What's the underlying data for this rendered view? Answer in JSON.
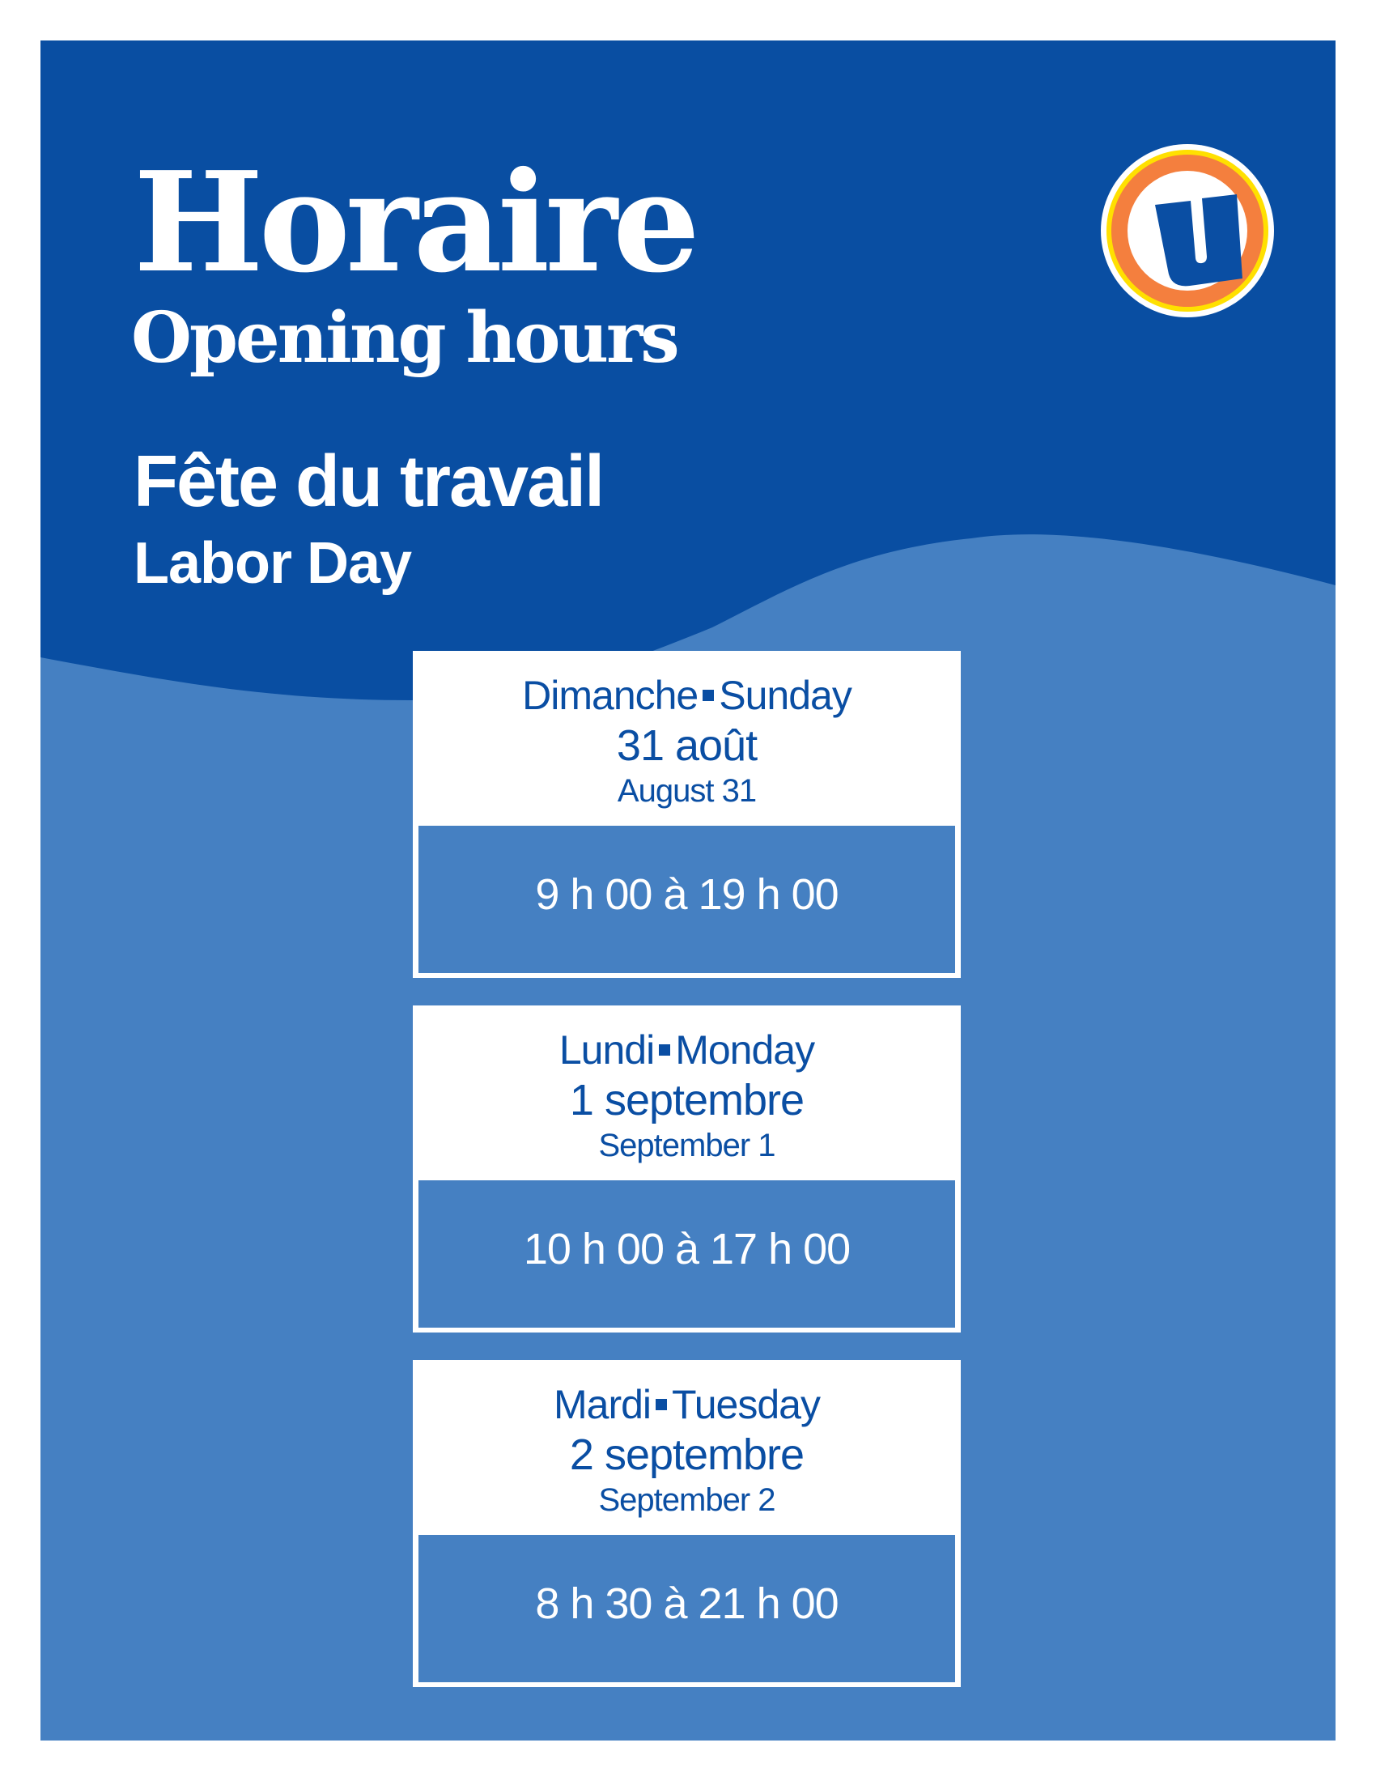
{
  "header": {
    "title_fr": "Horaire",
    "title_en": "Opening hours",
    "holiday_fr": "Fête du travail",
    "holiday_en": "Labor Day"
  },
  "logo": {
    "letter": "U",
    "colors": {
      "ring_outer": "#ffe000",
      "ring": "#f47f3e",
      "letter": "#0a4ea3"
    }
  },
  "colors": {
    "dark_blue": "#094ea2",
    "light_blue": "#4580c2",
    "white": "#ffffff"
  },
  "schedule": [
    {
      "day_fr": "Dimanche",
      "day_en": "Sunday",
      "date_fr": "31 août",
      "date_en": "August 31",
      "hours": "9 h 00 à 19 h 00"
    },
    {
      "day_fr": "Lundi",
      "day_en": "Monday",
      "date_fr": "1 septembre",
      "date_en": "September 1",
      "hours": "10 h 00 à 17 h 00"
    },
    {
      "day_fr": "Mardi",
      "day_en": "Tuesday",
      "date_fr": "2 septembre",
      "date_en": "September 2",
      "hours": "8 h 30 à 21 h 00"
    }
  ]
}
